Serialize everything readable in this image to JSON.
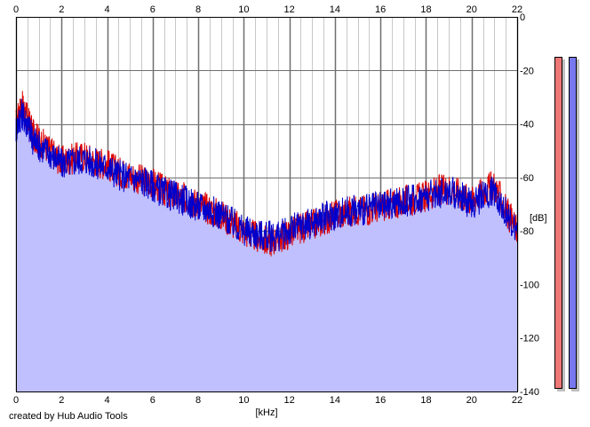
{
  "chart_data": {
    "type": "area",
    "xlabel": "[kHz]",
    "ylabel": "[dB]",
    "xlim": [
      0,
      22
    ],
    "ylim": [
      -140,
      0
    ],
    "x_ticks": [
      0,
      2,
      4,
      6,
      8,
      10,
      12,
      14,
      16,
      18,
      20,
      22
    ],
    "y_ticks": [
      0,
      -20,
      -40,
      -60,
      -80,
      -100,
      -120,
      -140
    ],
    "grid": true,
    "x_axis_position": "top-and-bottom",
    "y_axis_position": "right",
    "series": [
      {
        "color": "#dd0000",
        "x": [
          0,
          0.25,
          0.5,
          0.75,
          1,
          1.5,
          2,
          2.5,
          3,
          3.5,
          4,
          4.5,
          5,
          5.5,
          6,
          6.5,
          7,
          7.5,
          8,
          8.5,
          9,
          9.5,
          10,
          10.5,
          11,
          11.5,
          12,
          12.5,
          13,
          13.5,
          14,
          14.5,
          15,
          15.5,
          16,
          16.5,
          17,
          17.5,
          18,
          18.5,
          19,
          19.5,
          20,
          20.5,
          21,
          21.5,
          22
        ],
        "y": [
          -40,
          -33,
          -38,
          -44,
          -46,
          -50,
          -54,
          -53,
          -52,
          -54,
          -55,
          -58,
          -59,
          -61,
          -62,
          -65,
          -67,
          -68,
          -70,
          -72,
          -74,
          -77,
          -80,
          -82,
          -84,
          -83,
          -81,
          -79,
          -78,
          -76,
          -74,
          -73,
          -72,
          -72,
          -71,
          -70,
          -69,
          -68,
          -67,
          -65,
          -64,
          -66,
          -69,
          -65,
          -63,
          -72,
          -80
        ]
      },
      {
        "color": "#0000cc",
        "x": [
          0,
          0.25,
          0.5,
          0.75,
          1,
          1.5,
          2,
          2.5,
          3,
          3.5,
          4,
          4.5,
          5,
          5.5,
          6,
          6.5,
          7,
          7.5,
          8,
          8.5,
          9,
          9.5,
          10,
          10.5,
          11,
          11.5,
          12,
          12.5,
          13,
          13.5,
          14,
          14.5,
          15,
          15.5,
          16,
          16.5,
          17,
          17.5,
          18,
          18.5,
          19,
          19.5,
          20,
          20.5,
          21,
          21.5,
          22
        ],
        "y": [
          -42,
          -36,
          -40,
          -46,
          -48,
          -51,
          -55,
          -54,
          -53,
          -55,
          -56,
          -59,
          -60,
          -61,
          -63,
          -66,
          -67,
          -69,
          -71,
          -72,
          -74,
          -77,
          -80,
          -81,
          -82,
          -82,
          -80,
          -78,
          -77,
          -75,
          -74,
          -73,
          -72,
          -72,
          -71,
          -70,
          -69,
          -68,
          -67,
          -66,
          -65,
          -67,
          -70,
          -67,
          -65,
          -73,
          -81
        ]
      }
    ]
  },
  "meters": {
    "left_color": "#ee7777",
    "right_color": "#7777ee",
    "left_level": 1.0,
    "right_level": 1.0
  },
  "credit": "created by Hub Audio Tools",
  "colors": {
    "plot_bg": "#ffffff",
    "fill": "#c0c0ff",
    "grid_major": "#6f6f6f",
    "grid_minor": "#c8c8c8"
  }
}
